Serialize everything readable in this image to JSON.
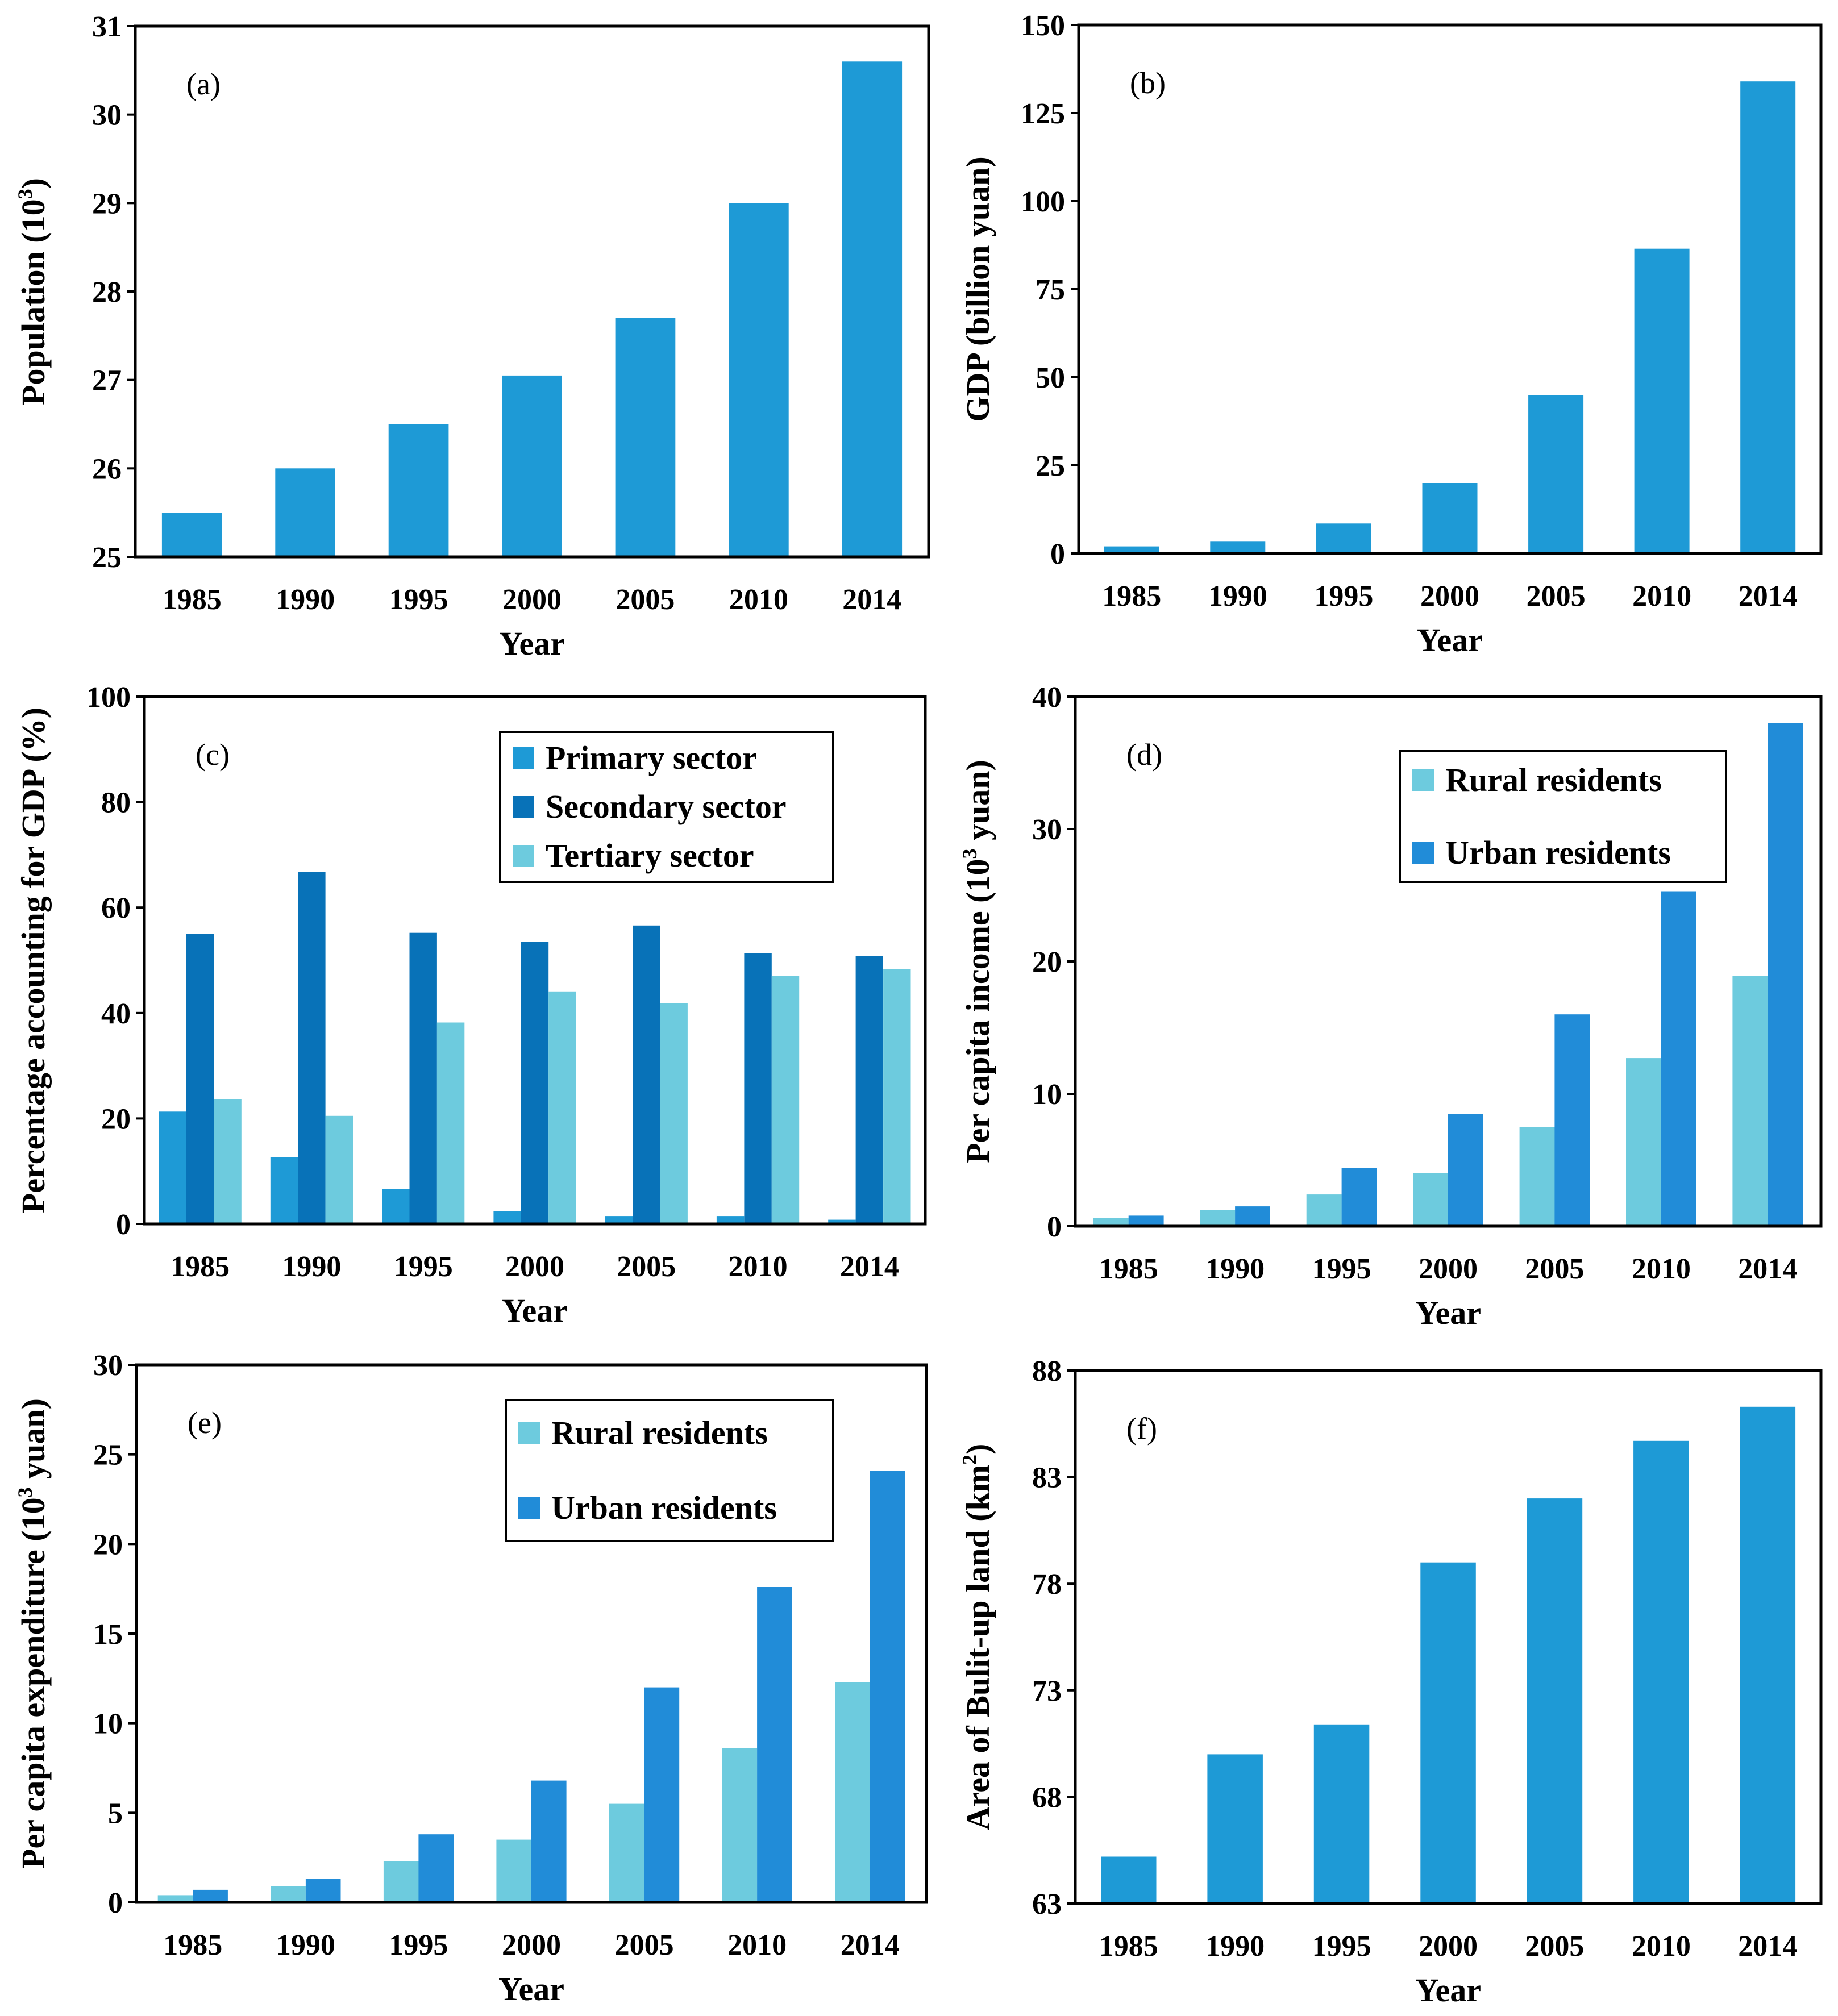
{
  "colors": {
    "primary_bar": "#1E9AD6",
    "primary_sector": "#1E9AD6",
    "secondary_sector": "#0872B8",
    "tertiary_sector": "#6DCBDE",
    "rural_residents": "#6DCBDE",
    "urban_residents": "#218CD8"
  },
  "chart_data": [
    {
      "id": "a",
      "type": "bar",
      "panel_label": "(a)",
      "title": "",
      "xlabel": "Year",
      "ylabel_main": "Population (10",
      "ylabel_sup": "3",
      "ylabel_end": ")",
      "categories": [
        "1985",
        "1990",
        "1995",
        "2000",
        "2005",
        "2010",
        "2014"
      ],
      "series": [
        {
          "name": "Population",
          "color_key": "primary_bar",
          "values": [
            25.5,
            26.0,
            26.5,
            27.05,
            27.7,
            29.0,
            30.6
          ]
        }
      ],
      "ylim": [
        25,
        31
      ],
      "yticks": [
        25,
        26,
        27,
        28,
        29,
        30,
        31
      ],
      "ytick_labels": [
        "25",
        "26",
        "27",
        "28",
        "29",
        "30",
        "31"
      ],
      "legend": null
    },
    {
      "id": "b",
      "type": "bar",
      "panel_label": "(b)",
      "title": "",
      "xlabel": "Year",
      "ylabel_main": "GDP (billion yuan)",
      "ylabel_sup": "",
      "ylabel_end": "",
      "categories": [
        "1985",
        "1990",
        "1995",
        "2000",
        "2005",
        "2010",
        "2014"
      ],
      "series": [
        {
          "name": "GDP",
          "color_key": "primary_bar",
          "values": [
            2,
            3.5,
            8.5,
            20,
            45,
            86.5,
            134
          ]
        }
      ],
      "ylim": [
        0,
        150
      ],
      "yticks": [
        0,
        25,
        50,
        75,
        100,
        125,
        150
      ],
      "ytick_labels": [
        "0",
        "25",
        "50",
        "75",
        "100",
        "125",
        "150"
      ],
      "legend": null
    },
    {
      "id": "c",
      "type": "bar",
      "panel_label": "(c)",
      "title": "",
      "xlabel": "Year",
      "ylabel_main": "Percentage accounting for GDP (%)",
      "ylabel_sup": "",
      "ylabel_end": "",
      "categories": [
        "1985",
        "1990",
        "1995",
        "2000",
        "2005",
        "2010",
        "2014"
      ],
      "series": [
        {
          "name": "Primary sector",
          "color_key": "primary_sector",
          "values": [
            21.3,
            12.7,
            6.6,
            2.4,
            1.5,
            1.5,
            0.8
          ]
        },
        {
          "name": "Secondary sector",
          "color_key": "secondary_sector",
          "values": [
            55,
            66.8,
            55.2,
            53.5,
            56.6,
            51.4,
            50.8
          ]
        },
        {
          "name": "Tertiary sector",
          "color_key": "tertiary_sector",
          "values": [
            23.7,
            20.5,
            38.2,
            44.1,
            41.9,
            47.0,
            48.3
          ]
        }
      ],
      "ylim": [
        0,
        100
      ],
      "yticks": [
        0,
        20,
        40,
        60,
        80,
        100
      ],
      "ytick_labels": [
        "0",
        "20",
        "40",
        "60",
        "80",
        "100"
      ],
      "legend": "top-center"
    },
    {
      "id": "d",
      "type": "bar",
      "panel_label": "(d)",
      "title": "",
      "xlabel": "Year",
      "ylabel_main": "Per capita income (10",
      "ylabel_sup": "3",
      "ylabel_end": " yuan)",
      "categories": [
        "1985",
        "1990",
        "1995",
        "2000",
        "2005",
        "2010",
        "2014"
      ],
      "series": [
        {
          "name": "Rural residents",
          "color_key": "rural_residents",
          "values": [
            0.6,
            1.2,
            2.4,
            4.0,
            7.5,
            12.7,
            18.9
          ]
        },
        {
          "name": "Urban residents",
          "color_key": "urban_residents",
          "values": [
            0.8,
            1.5,
            4.4,
            8.5,
            16.0,
            25.3,
            38.0
          ]
        }
      ],
      "ylim": [
        0,
        40
      ],
      "yticks": [
        0,
        10,
        20,
        30,
        40
      ],
      "ytick_labels": [
        "0",
        "10",
        "20",
        "30",
        "40"
      ],
      "legend": "top-center"
    },
    {
      "id": "e",
      "type": "bar",
      "panel_label": "(e)",
      "title": "",
      "xlabel": "Year",
      "ylabel_main": "Per capita expenditure (10",
      "ylabel_sup": "3",
      "ylabel_end": " yuan)",
      "categories": [
        "1985",
        "1990",
        "1995",
        "2000",
        "2005",
        "2010",
        "2014"
      ],
      "series": [
        {
          "name": "Rural residents",
          "color_key": "rural_residents",
          "values": [
            0.4,
            0.9,
            2.3,
            3.5,
            5.5,
            8.6,
            12.3
          ]
        },
        {
          "name": "Urban residents",
          "color_key": "urban_residents",
          "values": [
            0.7,
            1.3,
            3.8,
            6.8,
            12.0,
            17.6,
            24.1
          ]
        }
      ],
      "ylim": [
        0,
        30
      ],
      "yticks": [
        0,
        5,
        10,
        15,
        20,
        25,
        30
      ],
      "ytick_labels": [
        "0",
        "5",
        "10",
        "15",
        "20",
        "25",
        "30"
      ],
      "legend": "top-center"
    },
    {
      "id": "f",
      "type": "bar",
      "panel_label": "(f)",
      "title": "",
      "xlabel": "Year",
      "ylabel_main": "Area of Bulit-up land (km",
      "ylabel_sup": "2",
      "ylabel_end": ")",
      "categories": [
        "1985",
        "1990",
        "1995",
        "2000",
        "2005",
        "2010",
        "2014"
      ],
      "series": [
        {
          "name": "Area of Bulit-up land",
          "color_key": "primary_bar",
          "values": [
            65.2,
            70.0,
            71.4,
            79.0,
            82.0,
            84.7,
            86.3
          ]
        }
      ],
      "ylim": [
        63,
        88
      ],
      "yticks": [
        63,
        68,
        73,
        78,
        83,
        88
      ],
      "ytick_labels": [
        "63",
        "68",
        "73",
        "78",
        "83",
        "88"
      ],
      "legend": null
    }
  ]
}
